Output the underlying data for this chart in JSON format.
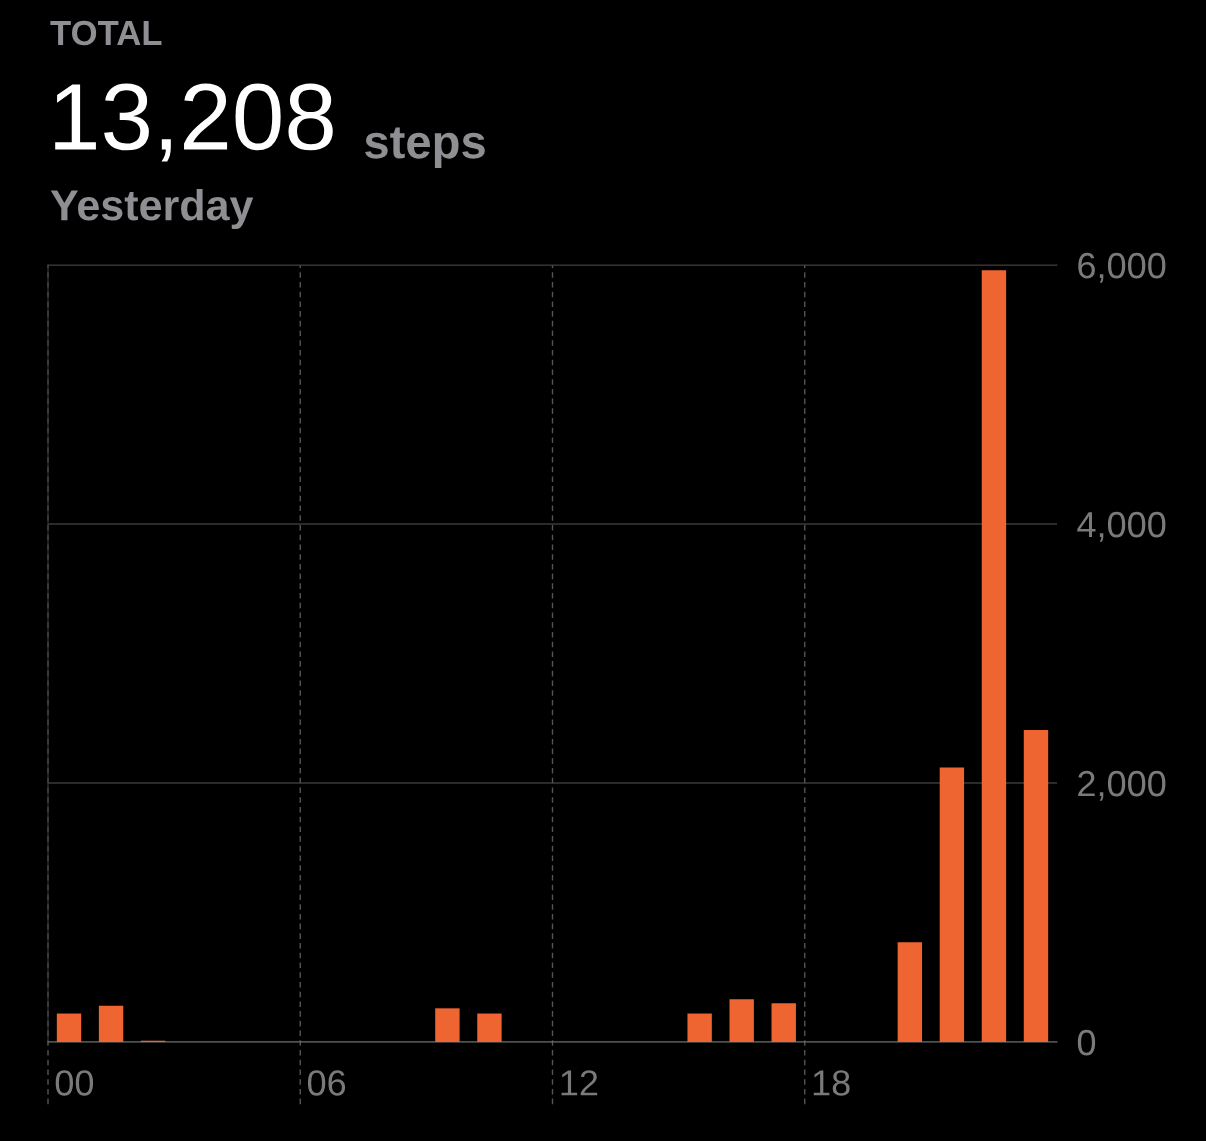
{
  "chart_data": {
    "type": "bar",
    "title": "13,208",
    "subtitle": "Yesterday",
    "annotations": [
      "TOTAL",
      "steps"
    ],
    "categories": [
      "00",
      null,
      null,
      null,
      null,
      null,
      "06",
      null,
      null,
      null,
      null,
      null,
      "12",
      null,
      null,
      null,
      null,
      null,
      "18",
      null,
      null,
      null,
      null,
      null
    ],
    "values": [
      220,
      280,
      10,
      null,
      null,
      null,
      null,
      null,
      null,
      260,
      220,
      null,
      null,
      null,
      null,
      220,
      330,
      300,
      null,
      null,
      770,
      2120,
      5960,
      2410
    ],
    "color": "#ef6532",
    "ylim": [
      0,
      6000
    ],
    "yticks": [
      {
        "value": 0,
        "label": "0"
      },
      {
        "value": 2000,
        "label": "2,000"
      },
      {
        "value": 4000,
        "label": "4,000"
      },
      {
        "value": 6000,
        "label": "6,000"
      }
    ],
    "grid": true
  }
}
